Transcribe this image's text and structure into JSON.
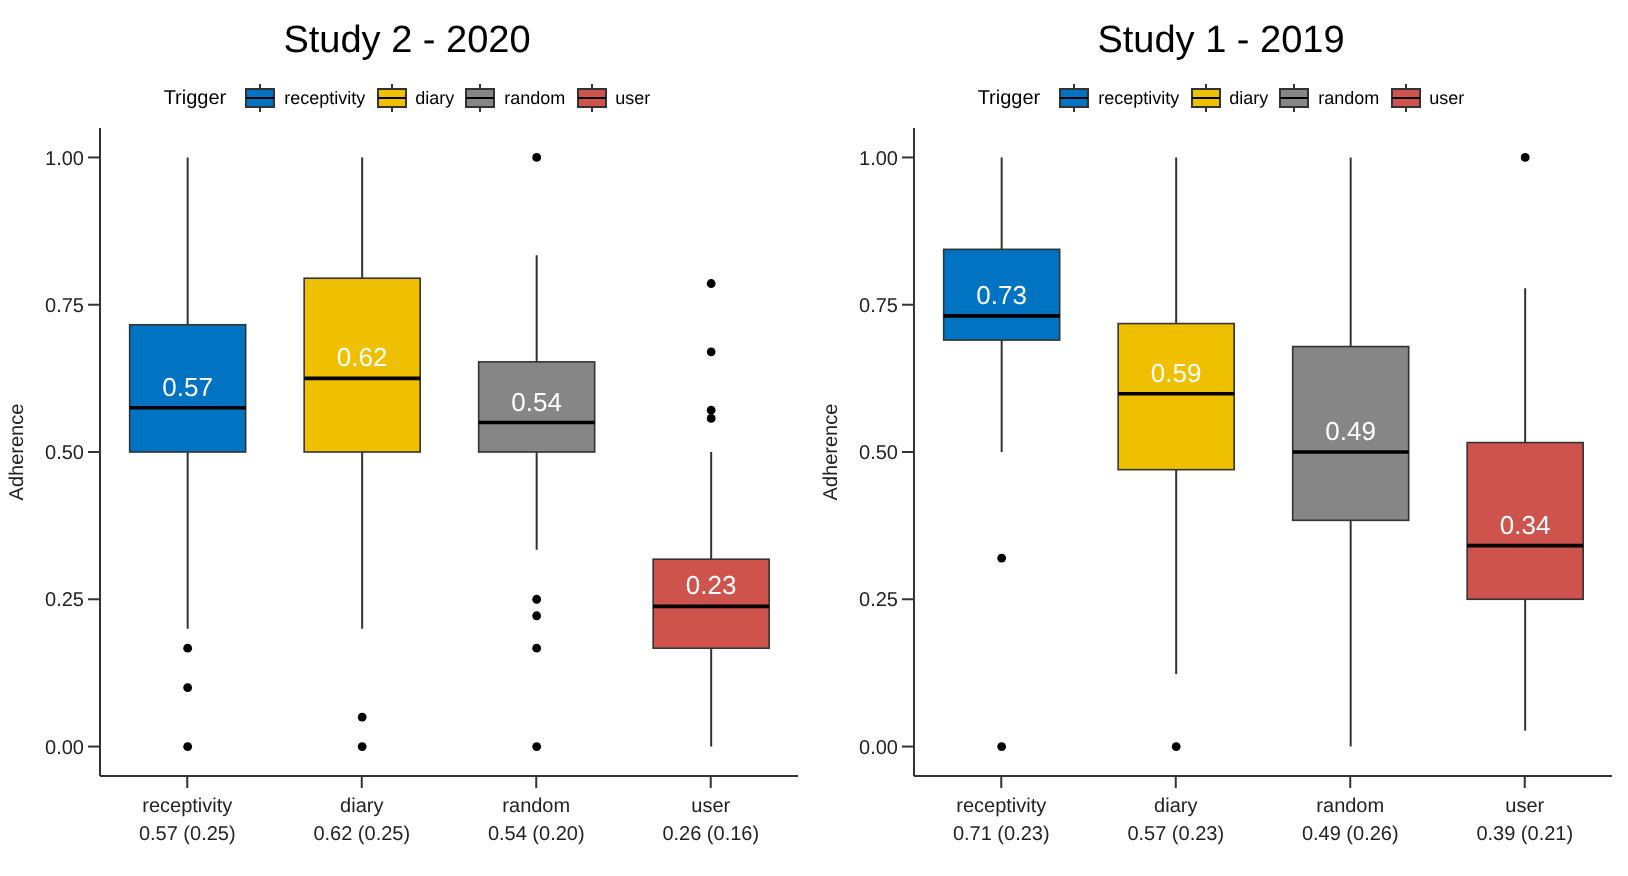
{
  "chart_data": [
    {
      "type": "box",
      "title": "Study 2 - 2020",
      "ylabel": "Adherence",
      "legend_title": "Trigger",
      "legend": "top",
      "categories": [
        "receptivity\n0.57 (0.25)",
        "diary\n0.62 (0.25)",
        "random\n0.54 (0.20)",
        "user\n0.26 (0.16)"
      ],
      "ylim": [
        -0.05,
        1.05
      ],
      "yticks": [
        {
          "value": 0,
          "label": "0.00"
        },
        {
          "value": 0.25,
          "label": "0.25"
        },
        {
          "value": 0.5,
          "label": "0.50"
        },
        {
          "value": 0.75,
          "label": "0.75"
        },
        {
          "value": 1,
          "label": "1.00"
        }
      ],
      "series": [
        {
          "name": "receptivity",
          "color": "#0073c2",
          "value_labels": [
            "0.57",
            null,
            null,
            null
          ],
          "boxes": [
            {
              "low": 0.2,
              "q1": 0.5,
              "median": 0.575,
              "q3": 0.716,
              "high": 1.0,
              "outliers": [
                0.167,
                0.1,
                0
              ]
            },
            null,
            null,
            null
          ]
        },
        {
          "name": "diary",
          "color": "#efc000",
          "value_labels": [
            null,
            "0.62",
            null,
            null
          ],
          "boxes": [
            null,
            {
              "low": 0.2,
              "q1": 0.5,
              "median": 0.625,
              "q3": 0.795,
              "high": 1.0,
              "outliers": [
                0.05,
                0
              ]
            },
            null,
            null
          ]
        },
        {
          "name": "random",
          "color": "#868686",
          "value_labels": [
            null,
            null,
            "0.54",
            null
          ],
          "boxes": [
            null,
            null,
            {
              "low": 0.334,
              "q1": 0.5,
              "median": 0.55,
              "q3": 0.653,
              "high": 0.834,
              "outliers": [
                1.0,
                0.25,
                0.222,
                0.167,
                0
              ]
            },
            null
          ]
        },
        {
          "name": "user",
          "color": "#cd534c",
          "value_labels": [
            null,
            null,
            null,
            "0.23"
          ],
          "boxes": [
            null,
            null,
            null,
            {
              "low": 0,
              "q1": 0.167,
              "median": 0.238,
              "q3": 0.318,
              "high": 0.5,
              "outliers": [
                0.786,
                0.67,
                0.571,
                0.557
              ]
            }
          ]
        }
      ]
    },
    {
      "type": "box",
      "title": "Study 1 - 2019",
      "ylabel": "Adherence",
      "legend_title": "Trigger",
      "legend": "top",
      "categories": [
        "receptivity\n0.71 (0.23)",
        "diary\n0.57 (0.23)",
        "random\n0.49 (0.26)",
        "user\n0.39 (0.21)"
      ],
      "ylim": [
        -0.05,
        1.05
      ],
      "yticks": [
        {
          "value": 0,
          "label": "0.00"
        },
        {
          "value": 0.25,
          "label": "0.25"
        },
        {
          "value": 0.5,
          "label": "0.50"
        },
        {
          "value": 0.75,
          "label": "0.75"
        },
        {
          "value": 1,
          "label": "1.00"
        }
      ],
      "series": [
        {
          "name": "receptivity",
          "color": "#0073c2",
          "value_labels": [
            "0.73",
            null,
            null,
            null
          ],
          "boxes": [
            {
              "low": 0.5,
              "q1": 0.69,
              "median": 0.731,
              "q3": 0.844,
              "high": 1.0,
              "outliers": [
                0.32,
                0
              ]
            },
            null,
            null,
            null
          ]
        },
        {
          "name": "diary",
          "color": "#efc000",
          "value_labels": [
            null,
            "0.59",
            null,
            null
          ],
          "boxes": [
            null,
            {
              "low": 0.123,
              "q1": 0.47,
              "median": 0.599,
              "q3": 0.718,
              "high": 1.0,
              "outliers": [
                0
              ]
            },
            null,
            null
          ]
        },
        {
          "name": "random",
          "color": "#868686",
          "value_labels": [
            null,
            null,
            "0.49",
            null
          ],
          "boxes": [
            null,
            null,
            {
              "low": 0,
              "q1": 0.384,
              "median": 0.5,
              "q3": 0.679,
              "high": 1.0
            },
            null
          ]
        },
        {
          "name": "user",
          "color": "#cd534c",
          "value_labels": [
            null,
            null,
            null,
            "0.34"
          ],
          "boxes": [
            null,
            null,
            null,
            {
              "low": 0.027,
              "q1": 0.25,
              "median": 0.341,
              "q3": 0.516,
              "high": 0.778,
              "outliers": [
                1.0
              ]
            }
          ]
        }
      ]
    }
  ]
}
